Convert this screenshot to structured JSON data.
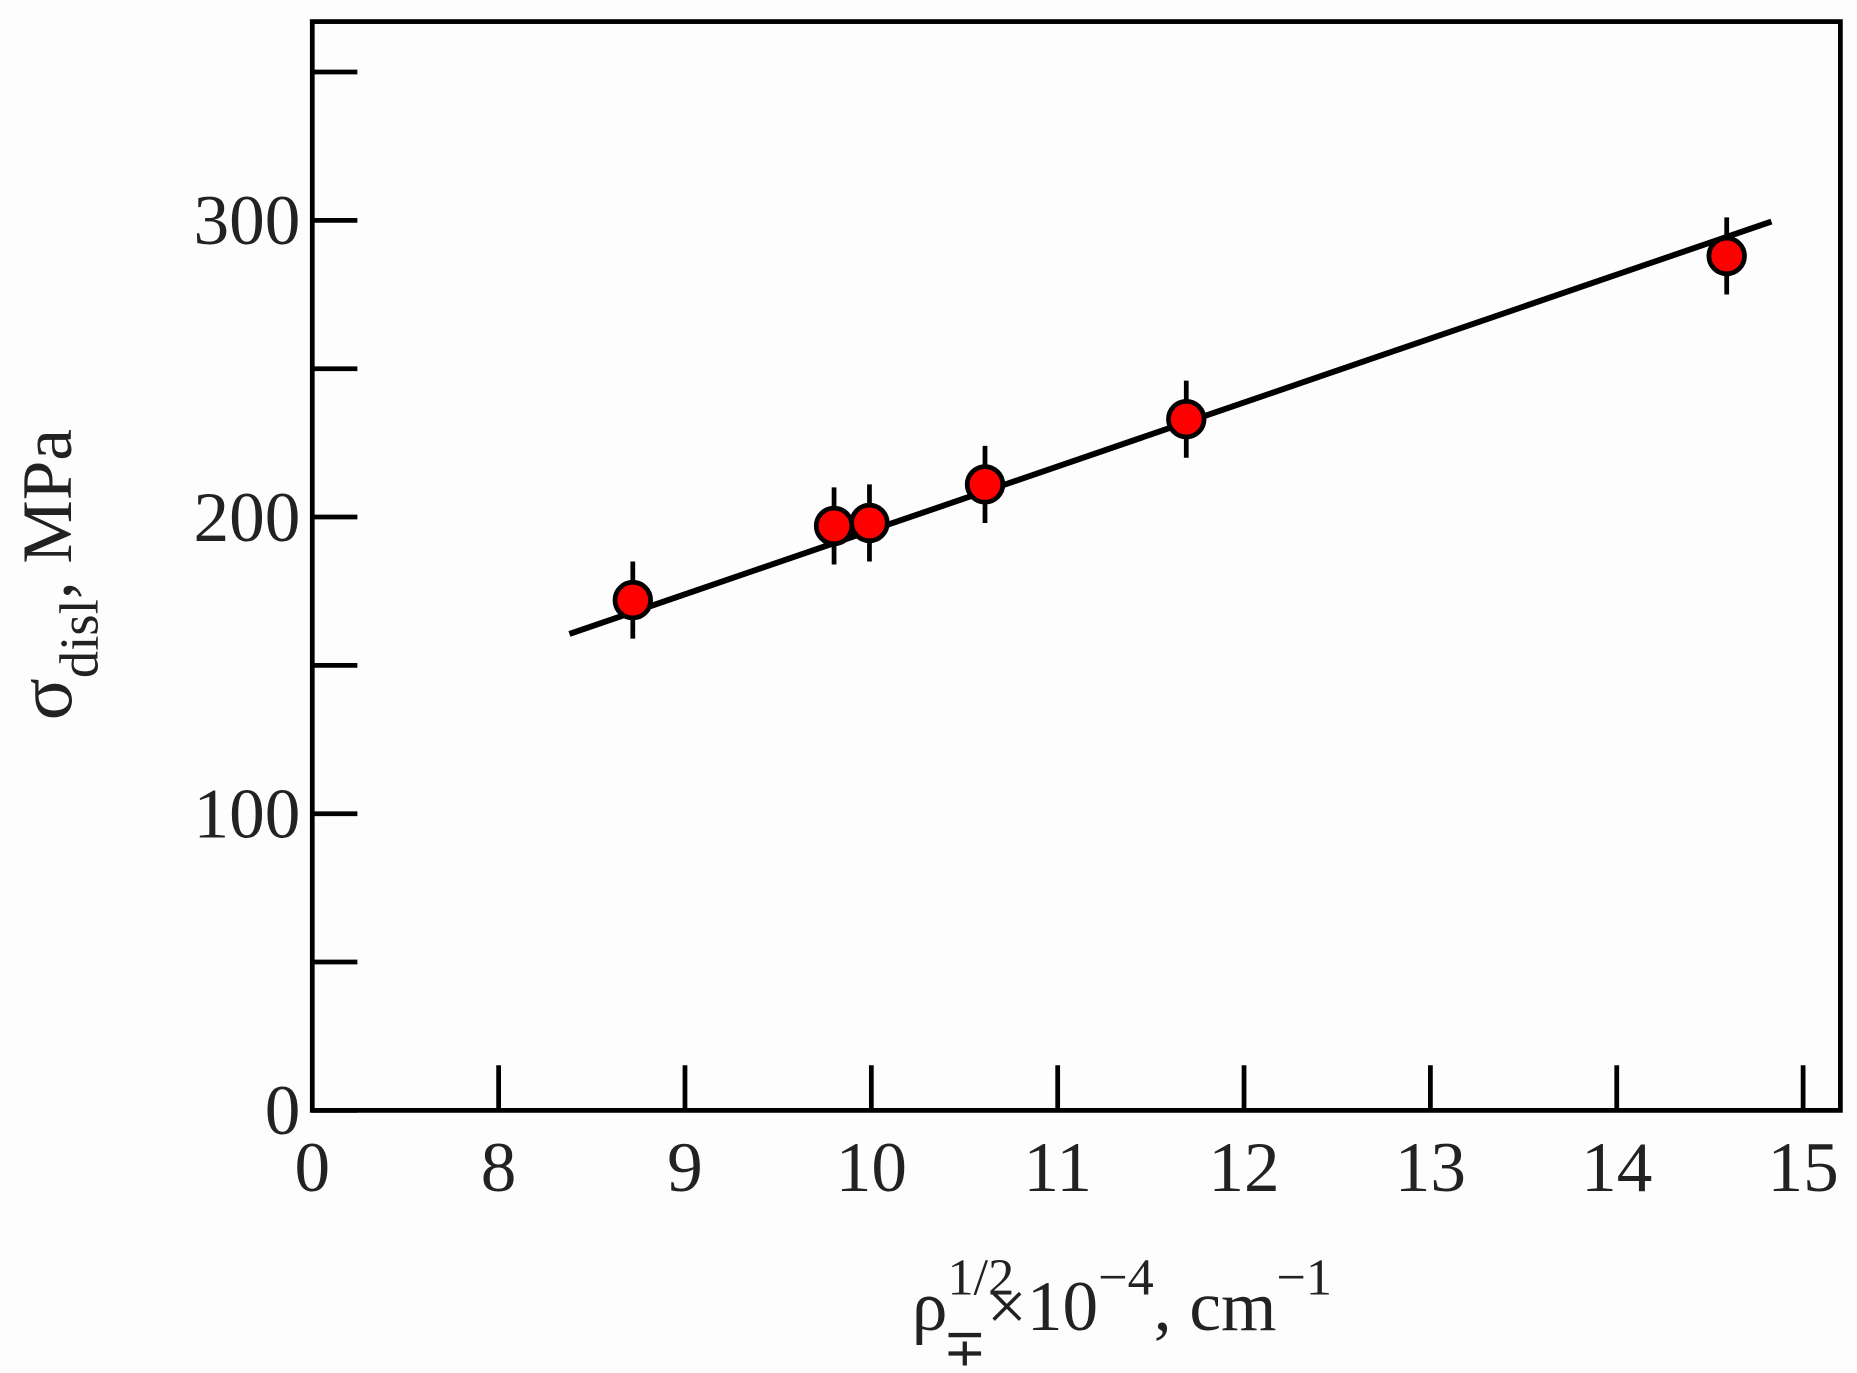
{
  "chart_data": {
    "type": "scatter",
    "x": [
      8.72,
      9.8,
      9.99,
      10.61,
      11.69,
      14.59
    ],
    "values": [
      172,
      197,
      198,
      211,
      233,
      288
    ],
    "errors": [
      13,
      13,
      13,
      13,
      13,
      13
    ],
    "color": "#ff0000",
    "fit": {
      "x": [
        8.38,
        14.83
      ],
      "y": [
        160.6,
        299.6
      ]
    },
    "xlim": [
      7,
      15.2
    ],
    "xticks": [
      8,
      9,
      10,
      11,
      12,
      13,
      14,
      15
    ],
    "x_origin_label": "0",
    "ylim": [
      0,
      367
    ],
    "yticks": [
      0,
      100,
      200,
      300
    ],
    "yminor": [
      50,
      150,
      250,
      350
    ],
    "y_label": {
      "symbol": "σ",
      "subscript": "disl",
      "unit": ",  MPa"
    },
    "x_label": [
      {
        "text": "ρ",
        "style": "normal"
      },
      {
        "text": "1/2",
        "style": "sup"
      },
      {
        "text": "∓",
        "style": "sub"
      },
      {
        "text": "×10",
        "style": "normal"
      },
      {
        "text": "−4",
        "style": "sup"
      },
      {
        "text": ", cm",
        "style": "normal"
      },
      {
        "text": "−1",
        "style": "sup"
      }
    ]
  }
}
